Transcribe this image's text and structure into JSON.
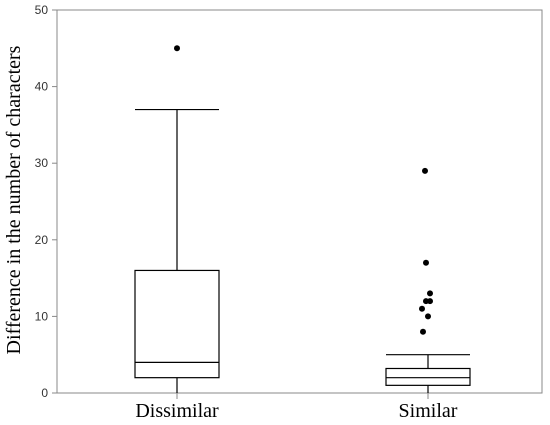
{
  "chart_data": {
    "type": "box",
    "title": "",
    "xlabel": "",
    "ylabel": "Difference in the number of characters",
    "ylim": [
      0,
      50
    ],
    "yticks": [
      0,
      10,
      20,
      30,
      40,
      50
    ],
    "grid": false,
    "categories": [
      "Dissimilar",
      "Similar"
    ],
    "boxes": [
      {
        "category": "Dissimilar",
        "whisker_low": 0,
        "q1": 2,
        "median": 4,
        "q3": 16,
        "whisker_high": 37,
        "outliers": [
          45
        ]
      },
      {
        "category": "Similar",
        "whisker_low": 0,
        "q1": 1,
        "median": 2,
        "q3": 3.2,
        "whisker_high": 5,
        "outliers": [
          8,
          10,
          11,
          12,
          12,
          13,
          17,
          29
        ]
      }
    ]
  }
}
